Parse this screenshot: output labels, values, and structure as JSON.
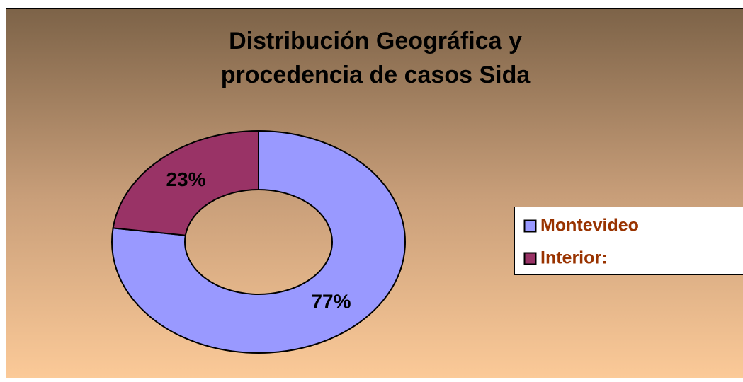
{
  "chart_data": {
    "type": "donut",
    "title": [
      "Distribución Geográfica y",
      "procedencia de casos Sida"
    ],
    "categories": [
      "Montevideo",
      "Interior:"
    ],
    "values": [
      77,
      23
    ],
    "value_labels": [
      "77%",
      "23%"
    ],
    "colors": [
      "#9999ff",
      "#993366"
    ],
    "legend": "right"
  }
}
